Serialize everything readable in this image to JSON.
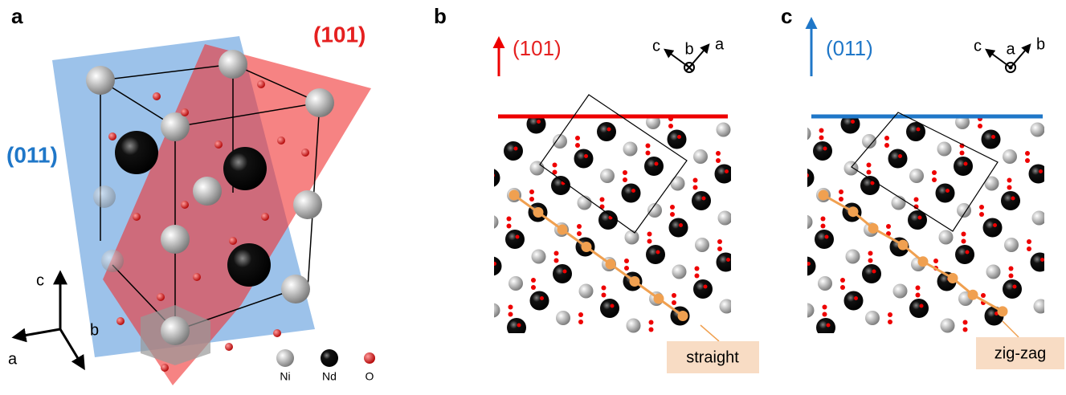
{
  "panels": [
    {
      "label": "a",
      "plane_labels": [
        "(101)",
        "(011)"
      ],
      "axes": [
        "c",
        "b",
        "a"
      ],
      "legend": [
        "Ni",
        "Nd",
        "O"
      ]
    },
    {
      "label": "b",
      "plane": "(101)",
      "axes": [
        "c",
        "b",
        "a"
      ],
      "callout": "straight"
    },
    {
      "label": "c",
      "plane": "(011)",
      "axes": [
        "c",
        "a",
        "b"
      ],
      "callout": "zig-zag"
    }
  ]
}
